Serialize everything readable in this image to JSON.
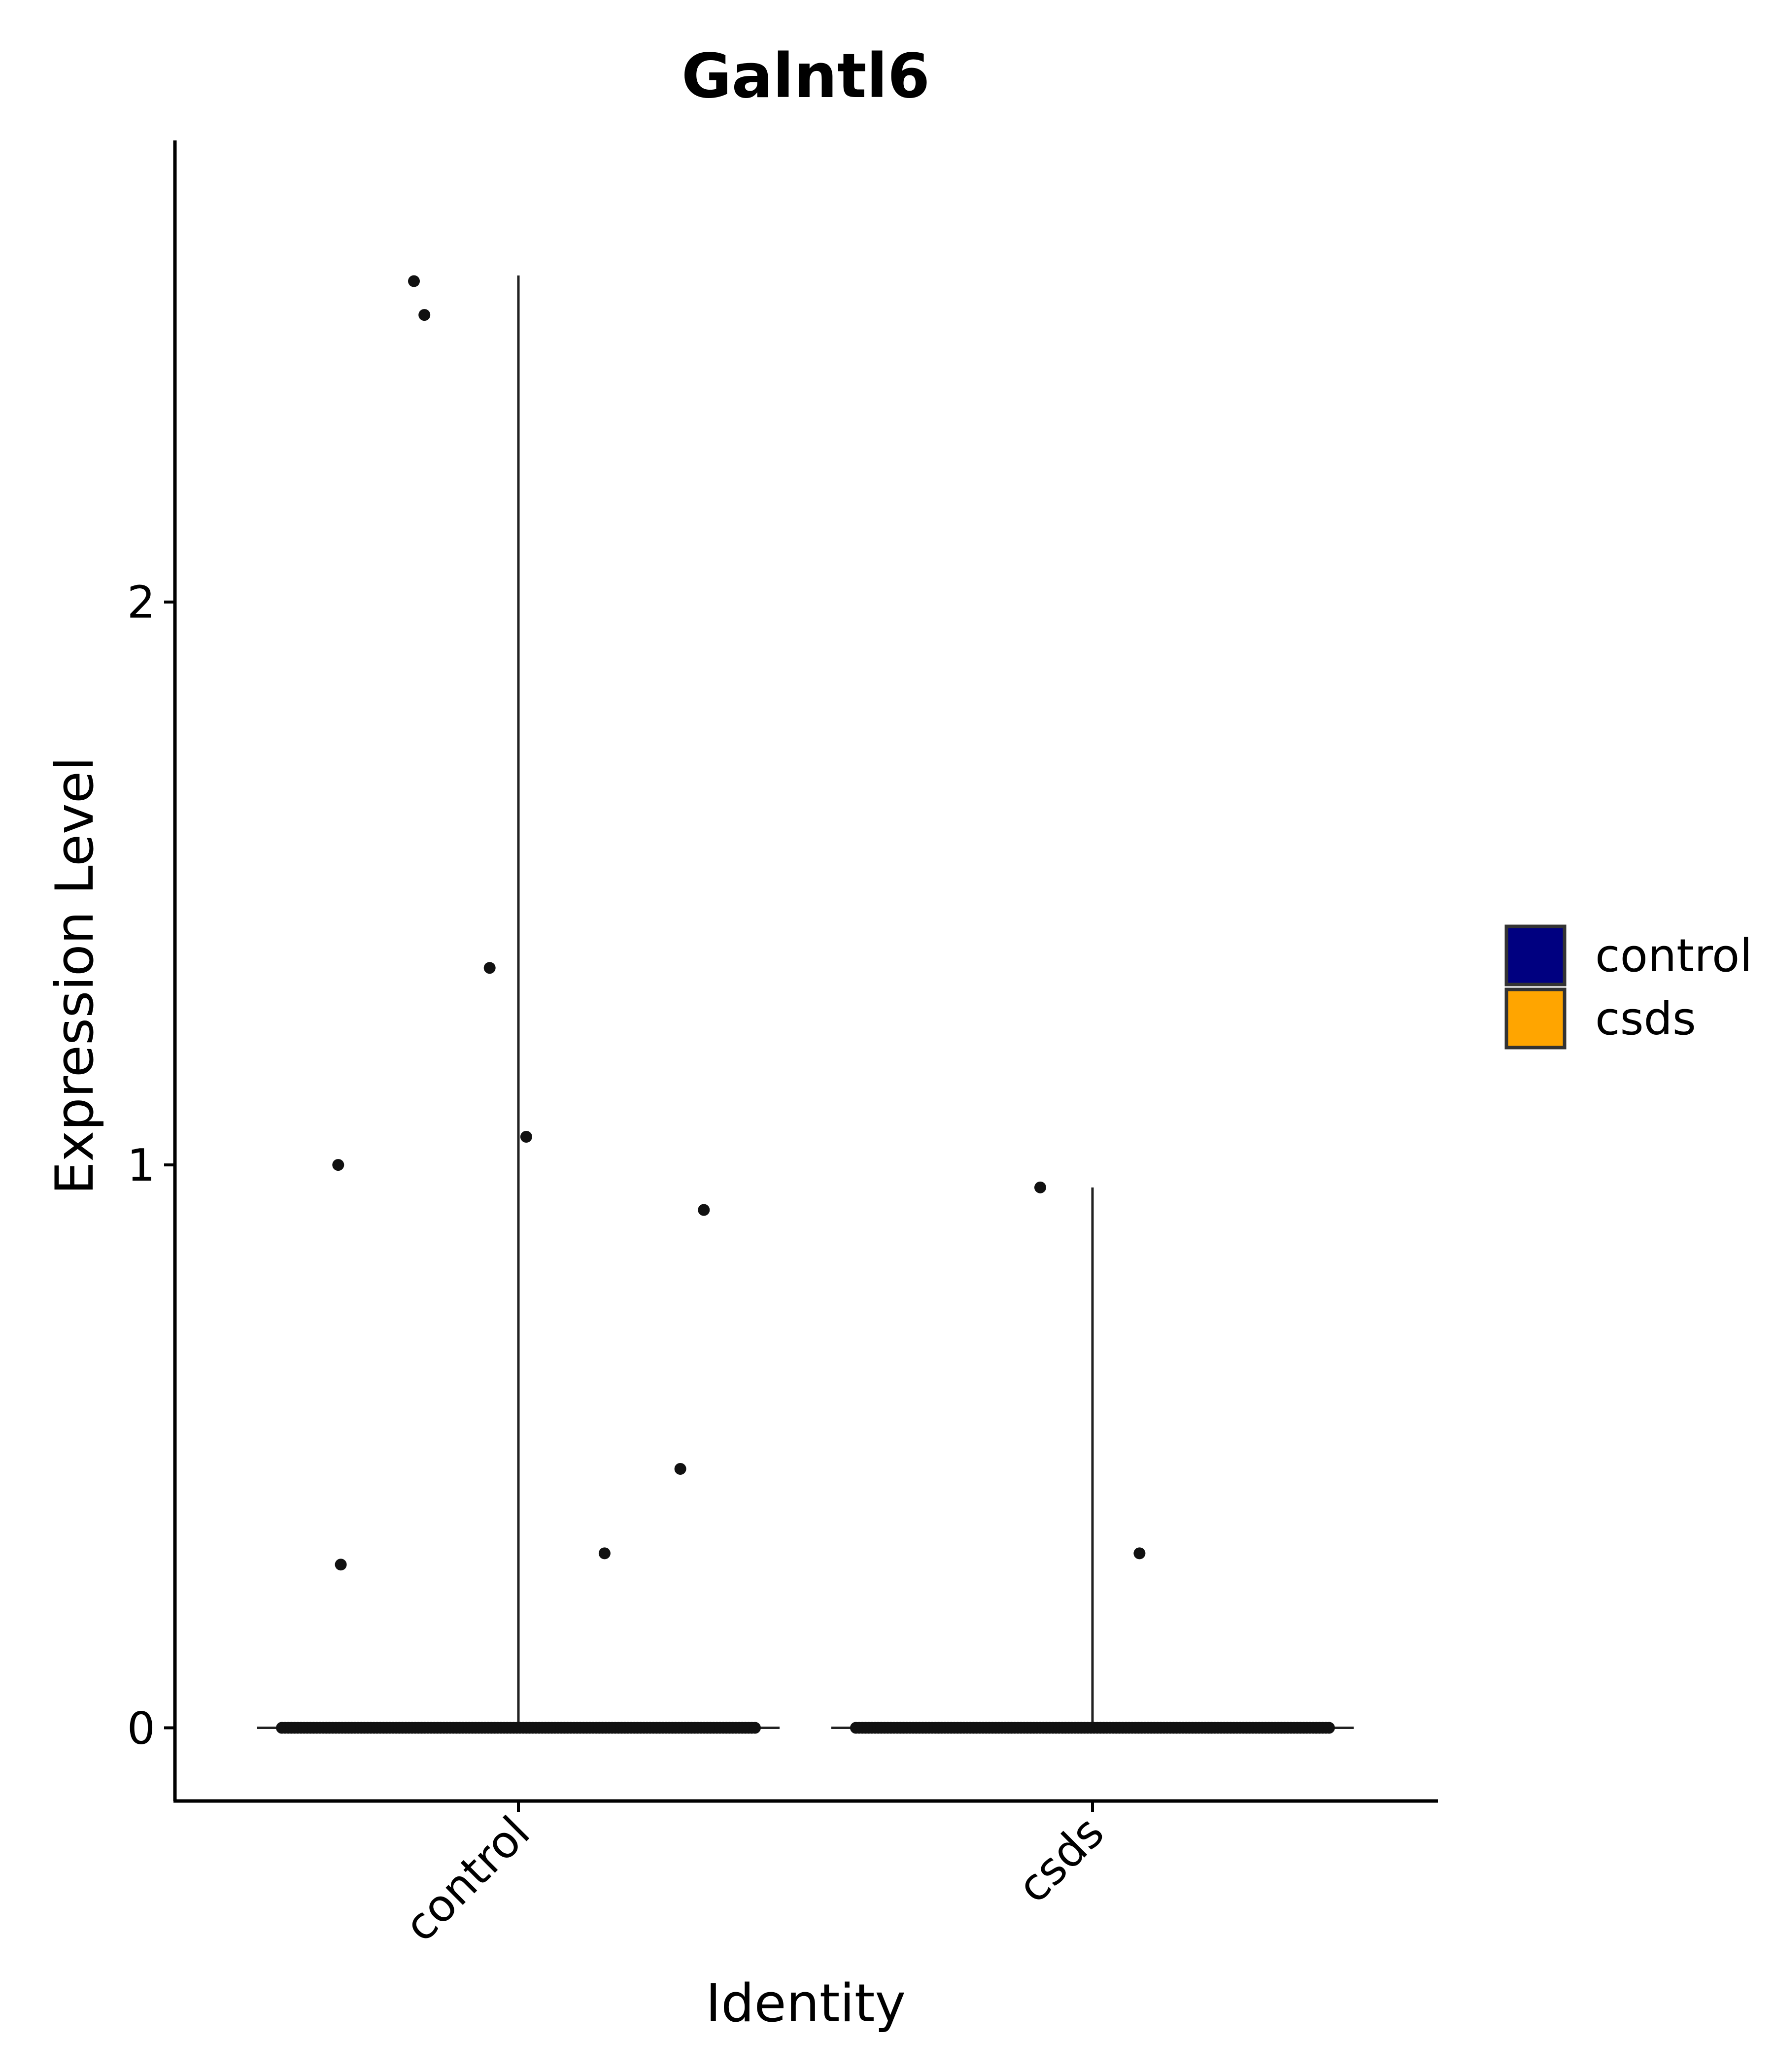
{
  "chart_data": {
    "type": "violin",
    "title": "Galntl6",
    "xlabel": "Identity",
    "ylabel": "Expression Level",
    "categories": [
      "control",
      "csds"
    ],
    "ylim": [
      -0.13,
      2.82
    ],
    "yticks": [
      0,
      1,
      2
    ],
    "grid": false,
    "legend": {
      "position": "right",
      "entries": [
        {
          "label": "control",
          "color": "#000080"
        },
        {
          "label": "csds",
          "color": "#FFA500"
        }
      ]
    },
    "series": [
      {
        "category": "control",
        "max": 2.58,
        "points": [
          {
            "jitter": -0.4,
            "y": 2.57
          },
          {
            "jitter": -0.36,
            "y": 2.51
          },
          {
            "jitter": -0.11,
            "y": 1.35
          },
          {
            "jitter": 0.03,
            "y": 1.05
          },
          {
            "jitter": -0.69,
            "y": 1.0
          },
          {
            "jitter": 0.71,
            "y": 0.92
          },
          {
            "jitter": 0.62,
            "y": 0.46
          },
          {
            "jitter": 0.33,
            "y": 0.31
          },
          {
            "jitter": -0.68,
            "y": 0.29
          }
        ]
      },
      {
        "category": "csds",
        "max": 0.96,
        "points": [
          {
            "jitter": -0.2,
            "y": 0.96
          },
          {
            "jitter": 0.18,
            "y": 0.31
          }
        ]
      }
    ]
  }
}
